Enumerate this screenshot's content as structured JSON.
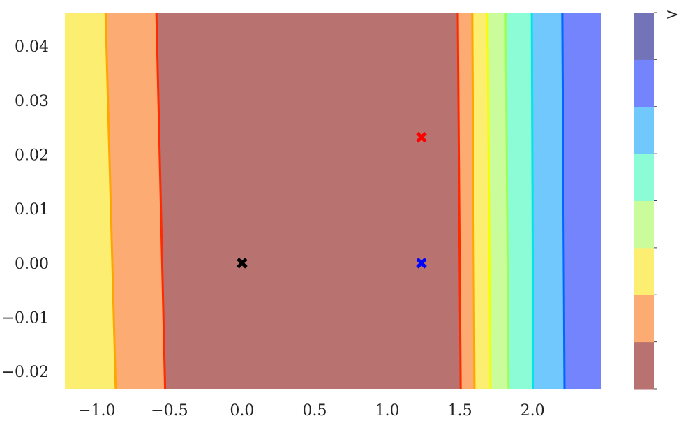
{
  "chart_data": {
    "type": "contour",
    "title": "",
    "xlabel": "",
    "ylabel": "",
    "xlim": [
      -1.22,
      2.47
    ],
    "ylim": [
      -0.0232,
      0.0462
    ],
    "x_ticks": [
      -1.0,
      -0.5,
      0.0,
      0.5,
      1.0,
      1.5,
      2.0
    ],
    "x_tick_labels": [
      "−1.0",
      "−0.5",
      "0.0",
      "0.5",
      "1.0",
      "1.5",
      "2.0"
    ],
    "y_ticks": [
      0.04,
      0.03,
      0.02,
      0.01,
      0.0,
      -0.01,
      -0.02
    ],
    "y_tick_labels": [
      "0.04",
      "0.03",
      "0.02",
      "0.01",
      "0.00",
      "−0.01",
      "−0.02"
    ],
    "colorbar": {
      "top_label": ">",
      "levels": 8,
      "colors": [
        "#b87370",
        "#fcab72",
        "#fcee70",
        "#cbfc9c",
        "#8cfcd6",
        "#70c8fc",
        "#7384fc",
        "#7373b8"
      ]
    },
    "regions": [
      {
        "level": 2,
        "x_top": -1.22,
        "x_bottom": -1.22,
        "fill": "#fcee70"
      },
      {
        "level": 1,
        "x_top": -0.94,
        "x_bottom": -0.87,
        "fill": "#fcab72",
        "line": "#ffa500"
      },
      {
        "level": 0,
        "x_top": -0.59,
        "x_bottom": -0.53,
        "fill": "#b87370",
        "line": "#ff2a00"
      },
      {
        "level": 1,
        "x_top": 1.485,
        "x_bottom": 1.505,
        "fill": "#fcab72",
        "line": "#ff2a00"
      },
      {
        "level": 2,
        "x_top": 1.585,
        "x_bottom": 1.6,
        "fill": "#fcee70",
        "line": "#ffa500"
      },
      {
        "level": 3,
        "x_top": 1.69,
        "x_bottom": 1.71,
        "fill": "#cbfc9c",
        "line": "#f5ff00"
      },
      {
        "level": 4,
        "x_top": 1.815,
        "x_bottom": 1.835,
        "fill": "#8cfcd6",
        "line": "#9bff5a"
      },
      {
        "level": 5,
        "x_top": 1.995,
        "x_bottom": 2.005,
        "fill": "#70c8fc",
        "line": "#00e5e5"
      },
      {
        "level": 6,
        "x_top": 2.205,
        "x_bottom": 2.22,
        "fill": "#7384fc",
        "line": "#0066ff"
      }
    ],
    "markers": [
      {
        "x": 0.0,
        "y": 0.0,
        "color": "#000000",
        "shape": "X"
      },
      {
        "x": 1.235,
        "y": 0.0,
        "color": "#0000ff",
        "shape": "X"
      },
      {
        "x": 1.235,
        "y": 0.0232,
        "color": "#ff0000",
        "shape": "X"
      }
    ],
    "grid": false,
    "legend": "none"
  }
}
